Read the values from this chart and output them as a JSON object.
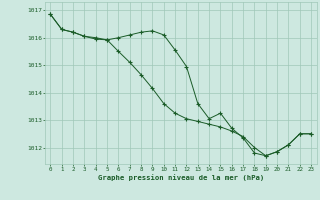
{
  "title": "Graphe pression niveau de la mer (hPa)",
  "bg_color": "#cde8e0",
  "grid_color": "#a0c8b8",
  "line_color": "#1a5c28",
  "xlim": [
    -0.5,
    23.5
  ],
  "ylim": [
    1011.4,
    1017.3
  ],
  "yticks": [
    1012,
    1013,
    1014,
    1015,
    1016,
    1017
  ],
  "xticks": [
    0,
    1,
    2,
    3,
    4,
    5,
    6,
    7,
    8,
    9,
    10,
    11,
    12,
    13,
    14,
    15,
    16,
    17,
    18,
    19,
    20,
    21,
    22,
    23
  ],
  "series1_x": [
    0,
    1,
    2,
    3,
    4,
    5,
    6,
    7,
    8,
    9,
    10,
    11,
    12,
    13,
    14,
    15,
    16,
    17,
    18,
    19,
    20,
    21,
    22,
    23
  ],
  "series1_y": [
    1016.85,
    1016.3,
    1016.2,
    1016.05,
    1015.95,
    1015.92,
    1016.0,
    1016.1,
    1016.2,
    1016.25,
    1016.1,
    1015.55,
    1014.95,
    1013.6,
    1013.05,
    1013.25,
    1012.7,
    1012.35,
    1011.8,
    1011.7,
    1011.85,
    1012.1,
    1012.5,
    1012.5
  ],
  "series2_x": [
    0,
    1,
    2,
    3,
    4,
    5,
    6,
    7,
    8,
    9,
    10,
    11,
    12,
    13,
    14,
    15,
    16,
    17,
    18,
    19,
    20,
    21,
    22,
    23
  ],
  "series2_y": [
    1016.85,
    1016.3,
    1016.2,
    1016.05,
    1016.0,
    1015.92,
    1015.5,
    1015.1,
    1014.65,
    1014.15,
    1013.6,
    1013.25,
    1013.05,
    1012.95,
    1012.85,
    1012.75,
    1012.6,
    1012.4,
    1012.0,
    1011.7,
    1011.85,
    1012.1,
    1012.5,
    1012.5
  ]
}
